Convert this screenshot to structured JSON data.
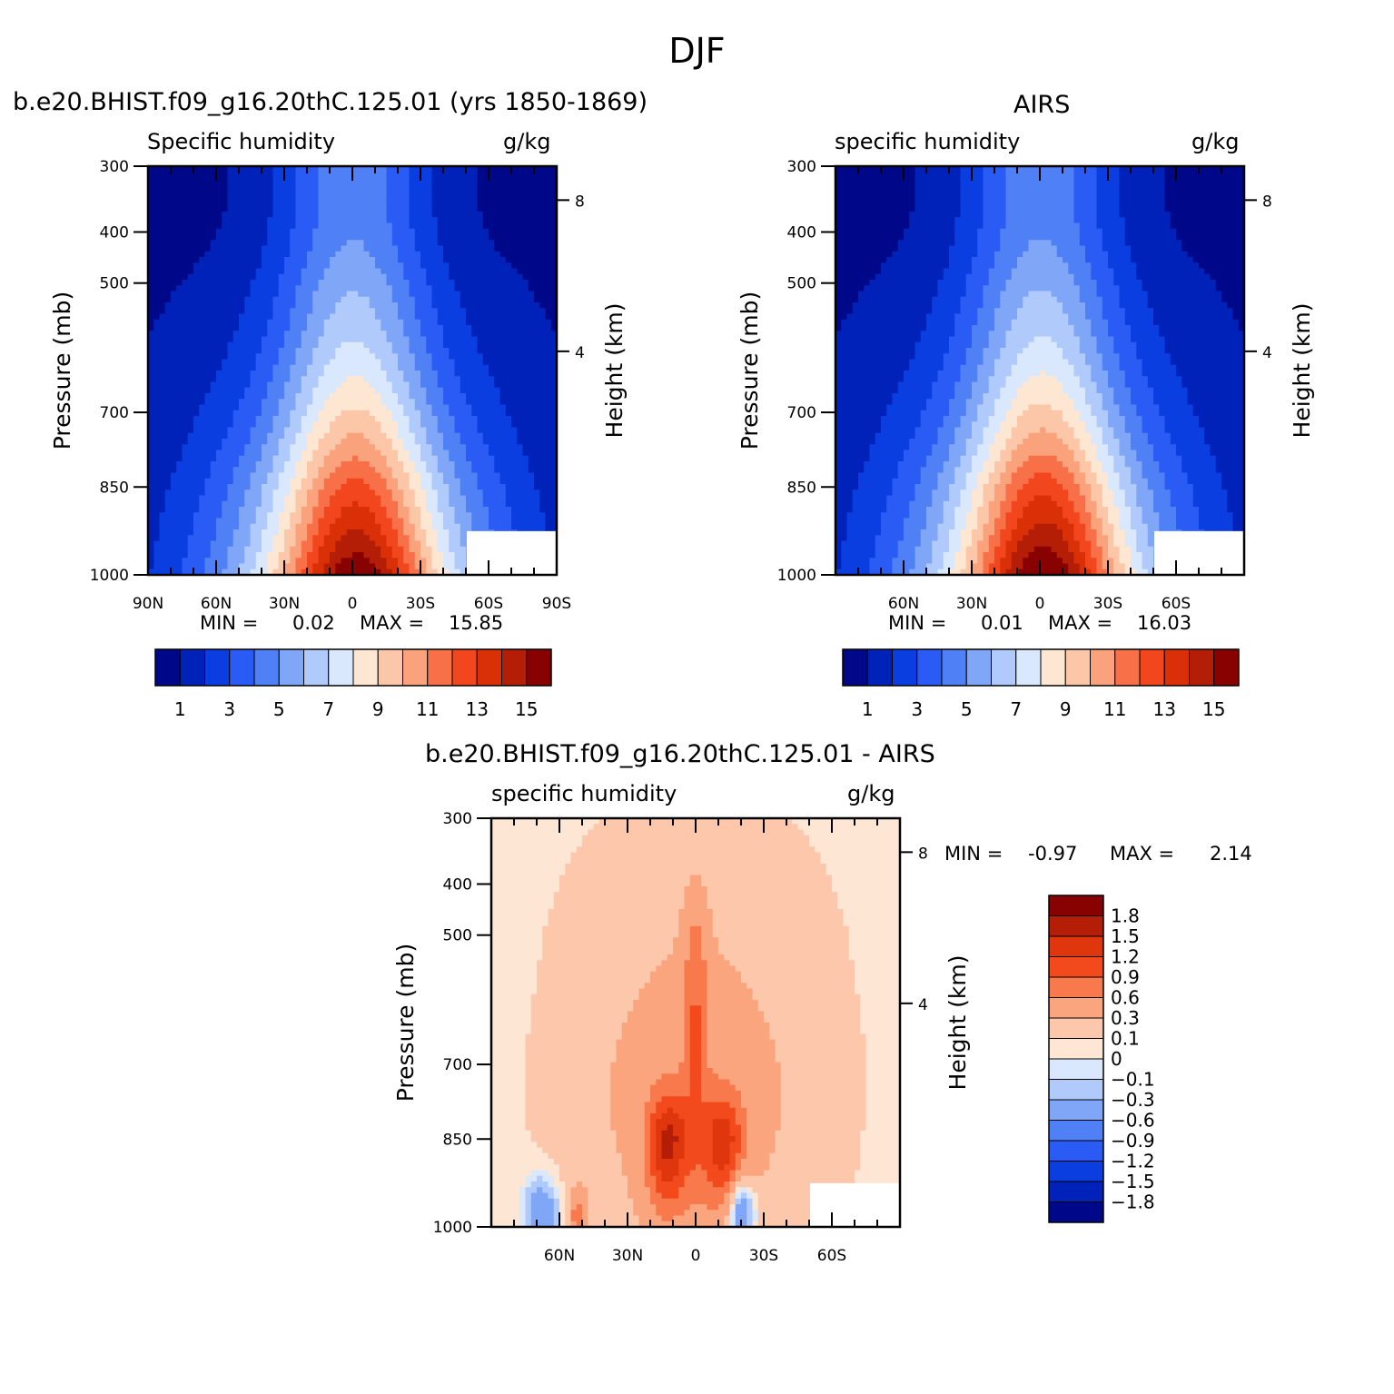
{
  "title": "DJF",
  "panels": [
    {
      "id": "model",
      "title": "b.e20.BHIST.f09_g16.20thC.125.01 (yrs 1850-1869)",
      "variable": "Specific humidity",
      "units": "g/kg",
      "min_label": "MIN =",
      "min_value": "0.02",
      "max_label": "MAX =",
      "max_value": "15.85",
      "x_ticks": [
        "90N",
        "60N",
        "30N",
        "0",
        "30S",
        "60S",
        "90S"
      ],
      "y_ticks": [
        "300",
        "400",
        "500",
        "700",
        "850",
        "1000"
      ],
      "y_label": "Pressure (mb)",
      "y2_ticks": [
        "8",
        "4"
      ],
      "y2_label": "Height (km)"
    },
    {
      "id": "airs",
      "title": "AIRS",
      "variable": "specific humidity",
      "units": "g/kg",
      "min_label": "MIN =",
      "min_value": "0.01",
      "max_label": "MAX =",
      "max_value": "16.03",
      "x_ticks": [
        "60N",
        "30N",
        "0",
        "30S",
        "60S"
      ],
      "y_ticks": [
        "300",
        "400",
        "500",
        "700",
        "850",
        "1000"
      ],
      "y_label": "Pressure (mb)",
      "y2_ticks": [
        "8",
        "4"
      ],
      "y2_label": "Height (km)"
    },
    {
      "id": "diff",
      "title": "b.e20.BHIST.f09_g16.20thC.125.01 - AIRS",
      "variable": "specific humidity",
      "units": "g/kg",
      "min_label": "MIN =",
      "min_value": "-0.97",
      "max_label": "MAX =",
      "max_value": "2.14",
      "x_ticks": [
        "60N",
        "30N",
        "0",
        "30S",
        "60S"
      ],
      "y_ticks": [
        "300",
        "400",
        "500",
        "700",
        "850",
        "1000"
      ],
      "y_label": "Pressure (mb)",
      "y2_ticks": [
        "8",
        "4"
      ],
      "y2_label": "Height (km)"
    }
  ],
  "colorbar_abs": {
    "labels": [
      "1",
      "3",
      "5",
      "7",
      "9",
      "11",
      "13",
      "15"
    ],
    "colors": [
      "#00088a",
      "#0022b8",
      "#0b3ee0",
      "#2a5cf5",
      "#5080f5",
      "#80a6f8",
      "#b0cbfb",
      "#d9e8fd",
      "#fde6d2",
      "#fcc6a8",
      "#faa27c",
      "#f87048",
      "#f2471e",
      "#d93008",
      "#b41e06",
      "#880202"
    ]
  },
  "colorbar_diff": {
    "labels": [
      "1.8",
      "1.5",
      "1.2",
      "0.9",
      "0.6",
      "0.3",
      "0.1",
      "0",
      "−0.1",
      "−0.3",
      "−0.6",
      "−0.9",
      "−1.2",
      "−1.5",
      "−1.8"
    ],
    "colors": [
      "#880202",
      "#b41e06",
      "#e0360e",
      "#f24a1c",
      "#f87a4c",
      "#faa57e",
      "#fcc7aa",
      "#fde7d4",
      "#d9e8fd",
      "#b0cbfb",
      "#80a6f8",
      "#5080f5",
      "#2a5cf5",
      "#0b3ee0",
      "#0022b8",
      "#00088a"
    ]
  },
  "chart_data": [
    {
      "type": "heatmap",
      "title": "b.e20.BHIST.f09_g16.20thC.125.01 (yrs 1850-1869)",
      "subtitle": "Specific humidity (g/kg)",
      "x": "latitude (90N to 90S)",
      "y": "pressure (mb), 300-1000",
      "xlim": [
        -90,
        90
      ],
      "ylim": [
        1000,
        300
      ],
      "min": 0.02,
      "max": 15.85,
      "levels": [
        1,
        2,
        3,
        4,
        5,
        6,
        7,
        8,
        9,
        10,
        11,
        12,
        13,
        14,
        15
      ],
      "maximum_location": "equator, near 1000 mb"
    },
    {
      "type": "heatmap",
      "title": "AIRS",
      "subtitle": "specific humidity (g/kg)",
      "xlim": [
        -90,
        90
      ],
      "ylim": [
        1000,
        300
      ],
      "min": 0.01,
      "max": 16.03,
      "levels": [
        1,
        2,
        3,
        4,
        5,
        6,
        7,
        8,
        9,
        10,
        11,
        12,
        13,
        14,
        15
      ]
    },
    {
      "type": "heatmap",
      "title": "b.e20.BHIST.f09_g16.20thC.125.01 - AIRS",
      "subtitle": "specific humidity (g/kg)",
      "xlim": [
        -90,
        90
      ],
      "ylim": [
        1000,
        300
      ],
      "min": -0.97,
      "max": 2.14,
      "levels": [
        -1.8,
        -1.5,
        -1.2,
        -0.9,
        -0.6,
        -0.3,
        -0.1,
        0,
        0.1,
        0.3,
        0.6,
        0.9,
        1.2,
        1.5,
        1.8
      ]
    }
  ]
}
